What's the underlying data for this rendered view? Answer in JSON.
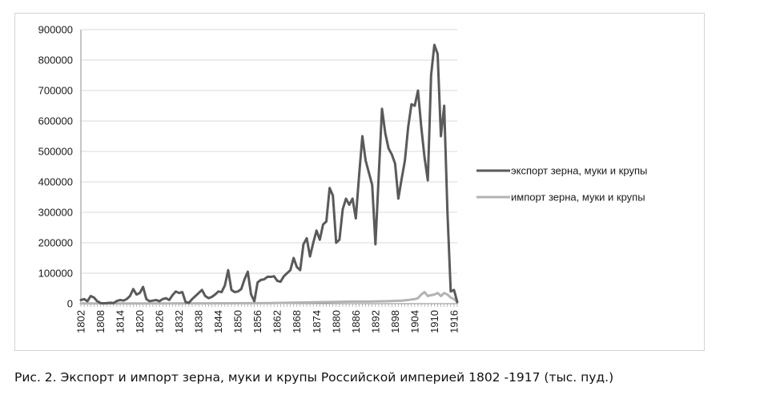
{
  "caption": "Рис. 2. Экспорт и импорт зерна, муки и крупы Российской империей 1802 -1917 (тыс. пуд.)",
  "chart_data": {
    "type": "line",
    "title": "",
    "xlabel": "",
    "ylabel": "",
    "ylim": [
      0,
      900000
    ],
    "yticks": [
      0,
      100000,
      200000,
      300000,
      400000,
      500000,
      600000,
      700000,
      800000,
      900000
    ],
    "xlim": [
      1802,
      1917
    ],
    "xticks": [
      1802,
      1808,
      1814,
      1820,
      1826,
      1832,
      1838,
      1844,
      1850,
      1856,
      1862,
      1868,
      1874,
      1880,
      1886,
      1892,
      1898,
      1904,
      1910,
      1916
    ],
    "grid": "horizontal",
    "legend_position": "right",
    "series": [
      {
        "name": "экспорт зерна, муки и крупы",
        "color": "#5a5a5a",
        "points": [
          [
            1802,
            12000
          ],
          [
            1803,
            15000
          ],
          [
            1804,
            8000
          ],
          [
            1805,
            25000
          ],
          [
            1806,
            20000
          ],
          [
            1807,
            8000
          ],
          [
            1808,
            2000
          ],
          [
            1809,
            1000
          ],
          [
            1810,
            2000
          ],
          [
            1811,
            3000
          ],
          [
            1812,
            2000
          ],
          [
            1813,
            9000
          ],
          [
            1814,
            12000
          ],
          [
            1815,
            10000
          ],
          [
            1816,
            15000
          ],
          [
            1817,
            25000
          ],
          [
            1818,
            48000
          ],
          [
            1819,
            30000
          ],
          [
            1820,
            35000
          ],
          [
            1821,
            55000
          ],
          [
            1822,
            15000
          ],
          [
            1823,
            8000
          ],
          [
            1824,
            10000
          ],
          [
            1825,
            12000
          ],
          [
            1826,
            8000
          ],
          [
            1827,
            15000
          ],
          [
            1828,
            18000
          ],
          [
            1829,
            12000
          ],
          [
            1830,
            28000
          ],
          [
            1831,
            40000
          ],
          [
            1832,
            35000
          ],
          [
            1833,
            38000
          ],
          [
            1834,
            5000
          ],
          [
            1835,
            3000
          ],
          [
            1836,
            15000
          ],
          [
            1837,
            25000
          ],
          [
            1838,
            35000
          ],
          [
            1839,
            45000
          ],
          [
            1840,
            25000
          ],
          [
            1841,
            18000
          ],
          [
            1842,
            22000
          ],
          [
            1843,
            30000
          ],
          [
            1844,
            40000
          ],
          [
            1845,
            38000
          ],
          [
            1846,
            60000
          ],
          [
            1847,
            110000
          ],
          [
            1848,
            45000
          ],
          [
            1849,
            38000
          ],
          [
            1850,
            40000
          ],
          [
            1851,
            48000
          ],
          [
            1852,
            80000
          ],
          [
            1853,
            105000
          ],
          [
            1854,
            30000
          ],
          [
            1855,
            8000
          ],
          [
            1856,
            70000
          ],
          [
            1857,
            78000
          ],
          [
            1858,
            80000
          ],
          [
            1859,
            88000
          ],
          [
            1860,
            88000
          ],
          [
            1861,
            90000
          ],
          [
            1862,
            75000
          ],
          [
            1863,
            72000
          ],
          [
            1864,
            90000
          ],
          [
            1865,
            100000
          ],
          [
            1866,
            110000
          ],
          [
            1867,
            150000
          ],
          [
            1868,
            120000
          ],
          [
            1869,
            110000
          ],
          [
            1870,
            195000
          ],
          [
            1871,
            215000
          ],
          [
            1872,
            155000
          ],
          [
            1873,
            200000
          ],
          [
            1874,
            240000
          ],
          [
            1875,
            210000
          ],
          [
            1876,
            260000
          ],
          [
            1877,
            270000
          ],
          [
            1878,
            380000
          ],
          [
            1879,
            355000
          ],
          [
            1880,
            200000
          ],
          [
            1881,
            210000
          ],
          [
            1882,
            310000
          ],
          [
            1883,
            345000
          ],
          [
            1884,
            325000
          ],
          [
            1885,
            345000
          ],
          [
            1886,
            280000
          ],
          [
            1887,
            420000
          ],
          [
            1888,
            550000
          ],
          [
            1889,
            470000
          ],
          [
            1890,
            430000
          ],
          [
            1891,
            390000
          ],
          [
            1892,
            195000
          ],
          [
            1893,
            420000
          ],
          [
            1894,
            640000
          ],
          [
            1895,
            560000
          ],
          [
            1896,
            510000
          ],
          [
            1897,
            490000
          ],
          [
            1898,
            460000
          ],
          [
            1899,
            345000
          ],
          [
            1900,
            410000
          ],
          [
            1901,
            470000
          ],
          [
            1902,
            580000
          ],
          [
            1903,
            655000
          ],
          [
            1904,
            650000
          ],
          [
            1905,
            700000
          ],
          [
            1906,
            580000
          ],
          [
            1907,
            480000
          ],
          [
            1908,
            405000
          ],
          [
            1909,
            750000
          ],
          [
            1910,
            850000
          ],
          [
            1911,
            820000
          ],
          [
            1912,
            550000
          ],
          [
            1913,
            650000
          ],
          [
            1914,
            300000
          ],
          [
            1915,
            40000
          ],
          [
            1916,
            45000
          ],
          [
            1917,
            5000
          ]
        ]
      },
      {
        "name": "импорт зерна, муки и крупы",
        "color": "#b3b3b3",
        "points": [
          [
            1802,
            500
          ],
          [
            1820,
            800
          ],
          [
            1840,
            1000
          ],
          [
            1855,
            1500
          ],
          [
            1860,
            2000
          ],
          [
            1865,
            3000
          ],
          [
            1870,
            4000
          ],
          [
            1875,
            5000
          ],
          [
            1880,
            6000
          ],
          [
            1885,
            7000
          ],
          [
            1890,
            7000
          ],
          [
            1895,
            8000
          ],
          [
            1900,
            10000
          ],
          [
            1902,
            12000
          ],
          [
            1904,
            15000
          ],
          [
            1905,
            18000
          ],
          [
            1906,
            30000
          ],
          [
            1907,
            38000
          ],
          [
            1908,
            25000
          ],
          [
            1909,
            28000
          ],
          [
            1910,
            30000
          ],
          [
            1911,
            35000
          ],
          [
            1912,
            25000
          ],
          [
            1913,
            35000
          ],
          [
            1914,
            30000
          ],
          [
            1915,
            20000
          ],
          [
            1916,
            15000
          ],
          [
            1917,
            5000
          ]
        ]
      }
    ]
  }
}
